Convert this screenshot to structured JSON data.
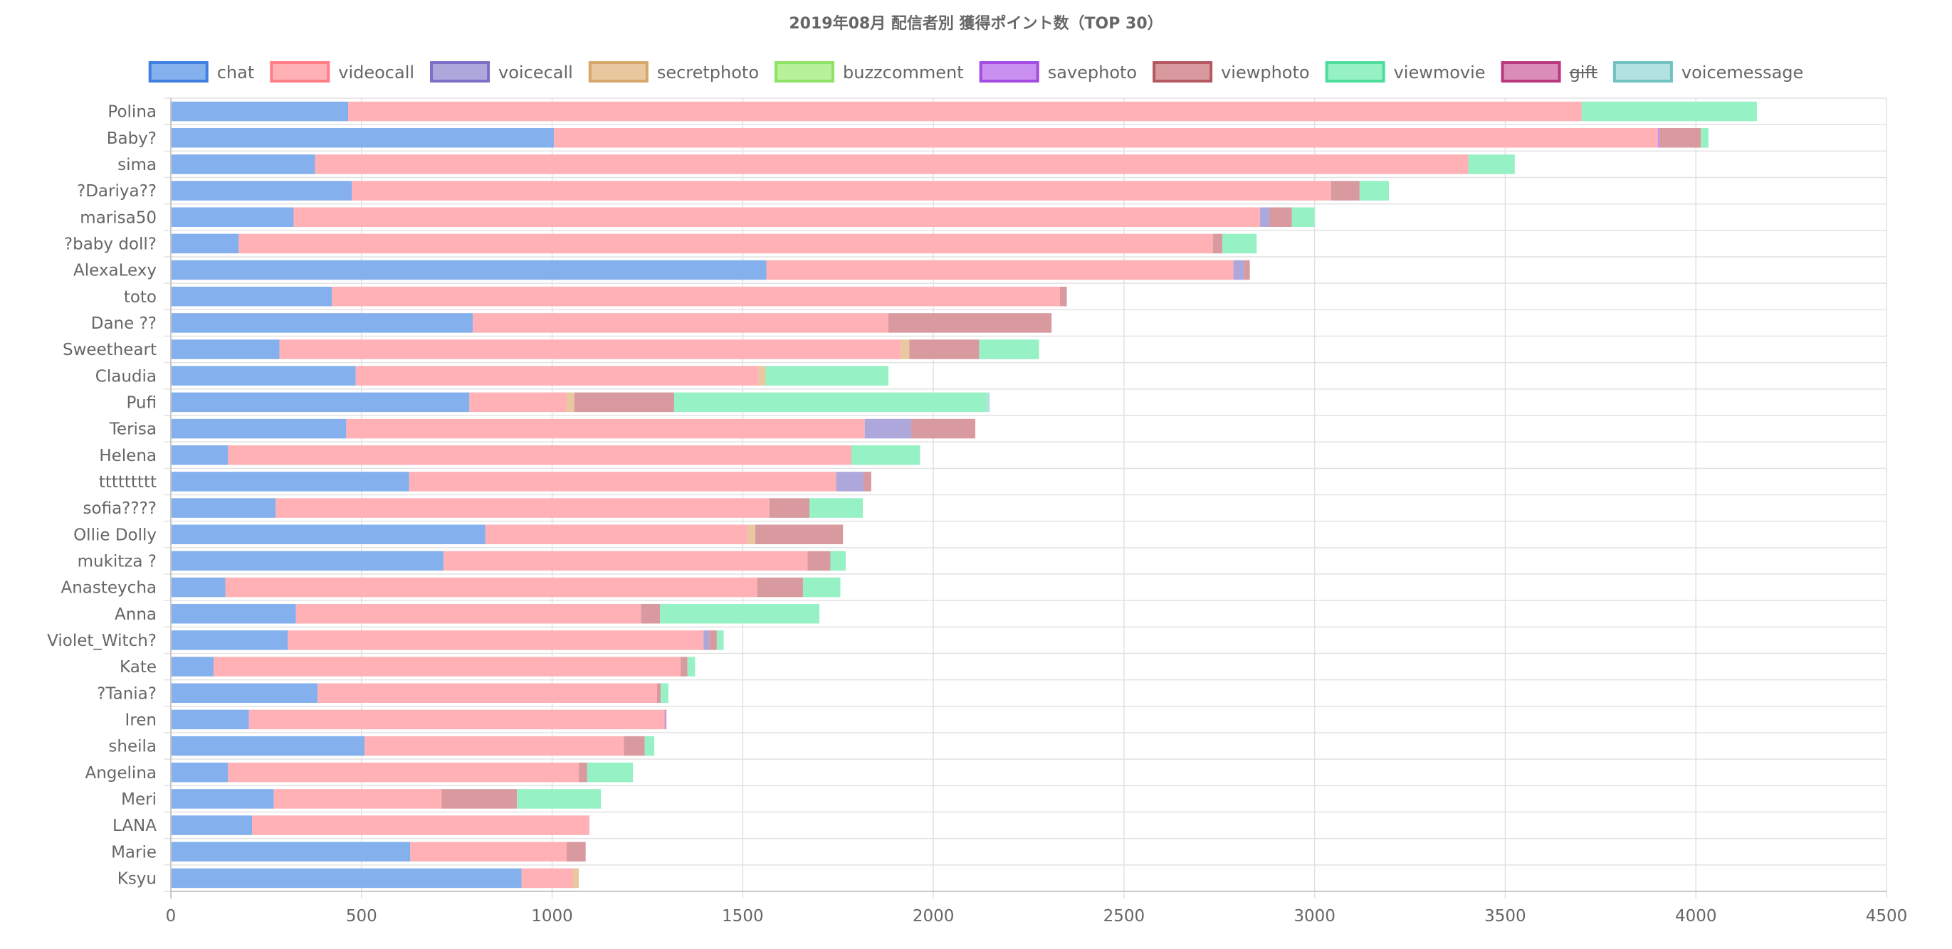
{
  "chart_data": {
    "type": "bar",
    "orientation": "horizontal",
    "stacked": true,
    "title": "2019年08月 配信者別 獲得ポイント数（TOP 30）",
    "xlabel": "",
    "ylabel": "",
    "xlim": [
      0,
      4500
    ],
    "xticks": [
      0,
      500,
      1000,
      1500,
      2000,
      2500,
      3000,
      3500,
      4000,
      4500
    ],
    "grid": true,
    "legend_position": "top",
    "categories": [
      "Polina",
      "Baby?",
      "sima",
      "?Dariya??",
      "marisa50",
      "?baby doll?",
      "AlexaLexy",
      "toto",
      "Dane ??",
      "Sweetheart",
      "Claudia",
      "Pufi",
      "Terisa",
      "Helena",
      "ttttttttt",
      "sofia????",
      "Ollie Dolly",
      "mukitza ?",
      "Anasteycha",
      "Anna",
      "Violet_Witch?",
      "Kate",
      "?Tania?",
      "Iren",
      "sheila",
      "Angelina",
      "Meri",
      "LANA",
      "Marie",
      "Ksyu"
    ],
    "series": [
      {
        "name": "chat",
        "fill": "#84b0ee",
        "border": "#3f7fe0",
        "hidden": false,
        "values": [
          465,
          1005,
          378,
          475,
          322,
          178,
          1562,
          422,
          792,
          285,
          485,
          783,
          460,
          150,
          625,
          275,
          825,
          715,
          143,
          328,
          307,
          112,
          385,
          205,
          508,
          150,
          270,
          213,
          628,
          920
        ]
      },
      {
        "name": "videocall",
        "fill": "#ffb1b6",
        "border": "#ff7d86",
        "hidden": false,
        "values": [
          3235,
          2895,
          3025,
          2568,
          2535,
          2555,
          1225,
          1910,
          1090,
          1630,
          1057,
          255,
          1360,
          1635,
          1120,
          1295,
          688,
          955,
          1395,
          905,
          1090,
          1225,
          890,
          1090,
          680,
          920,
          440,
          885,
          410,
          135
        ]
      },
      {
        "name": "voicecall",
        "fill": "#ada7dc",
        "border": "#7b6fc7",
        "hidden": false,
        "values": [
          0,
          0,
          0,
          0,
          25,
          0,
          28,
          0,
          0,
          0,
          0,
          0,
          122,
          0,
          72,
          0,
          0,
          0,
          0,
          0,
          15,
          0,
          0,
          0,
          0,
          0,
          0,
          0,
          0,
          0
        ]
      },
      {
        "name": "secretphoto",
        "fill": "#e9c89f",
        "border": "#d6a76a",
        "hidden": false,
        "values": [
          0,
          0,
          0,
          0,
          0,
          0,
          0,
          0,
          0,
          22,
          18,
          20,
          0,
          0,
          0,
          0,
          20,
          0,
          0,
          0,
          0,
          0,
          0,
          0,
          0,
          0,
          0,
          0,
          0,
          15
        ]
      },
      {
        "name": "buzzcomment",
        "fill": "#b7f29a",
        "border": "#8de366",
        "hidden": false,
        "values": [
          0,
          0,
          0,
          0,
          0,
          0,
          0,
          0,
          0,
          0,
          0,
          0,
          0,
          0,
          0,
          0,
          0,
          0,
          0,
          0,
          0,
          0,
          0,
          0,
          0,
          0,
          0,
          0,
          0,
          0
        ]
      },
      {
        "name": "savephoto",
        "fill": "#c98ff1",
        "border": "#a44be1",
        "hidden": false,
        "values": [
          0,
          5,
          0,
          0,
          0,
          0,
          0,
          0,
          0,
          0,
          0,
          0,
          0,
          0,
          0,
          0,
          0,
          0,
          0,
          0,
          0,
          0,
          0,
          3,
          0,
          0,
          0,
          0,
          0,
          0
        ]
      },
      {
        "name": "viewphoto",
        "fill": "#d89a9f",
        "border": "#b45962",
        "hidden": false,
        "values": [
          0,
          108,
          0,
          75,
          58,
          25,
          15,
          18,
          428,
          183,
          0,
          262,
          168,
          0,
          20,
          105,
          230,
          60,
          120,
          50,
          20,
          18,
          10,
          2,
          55,
          22,
          198,
          0,
          50,
          0
        ]
      },
      {
        "name": "viewmovie",
        "fill": "#96f1c4",
        "border": "#4ddd9b",
        "hidden": false,
        "values": [
          460,
          20,
          122,
          77,
          60,
          90,
          0,
          0,
          0,
          157,
          322,
          818,
          0,
          180,
          0,
          140,
          0,
          40,
          98,
          418,
          18,
          20,
          20,
          0,
          25,
          120,
          220,
          0,
          0,
          0
        ]
      },
      {
        "name": "gift",
        "fill": "#db8cb8",
        "border": "#b9387e",
        "hidden": true,
        "values": [
          0,
          0,
          0,
          0,
          0,
          0,
          0,
          0,
          0,
          0,
          0,
          0,
          0,
          0,
          0,
          0,
          0,
          0,
          0,
          0,
          0,
          0,
          0,
          0,
          0,
          0,
          0,
          0,
          0,
          0
        ]
      },
      {
        "name": "voicemessage",
        "fill": "#b2e2e2",
        "border": "#72c2c2",
        "hidden": false,
        "values": [
          0,
          0,
          0,
          0,
          0,
          0,
          0,
          0,
          0,
          0,
          0,
          10,
          0,
          0,
          0,
          0,
          0,
          0,
          0,
          0,
          0,
          0,
          0,
          0,
          0,
          0,
          0,
          0,
          0,
          0
        ]
      }
    ]
  }
}
